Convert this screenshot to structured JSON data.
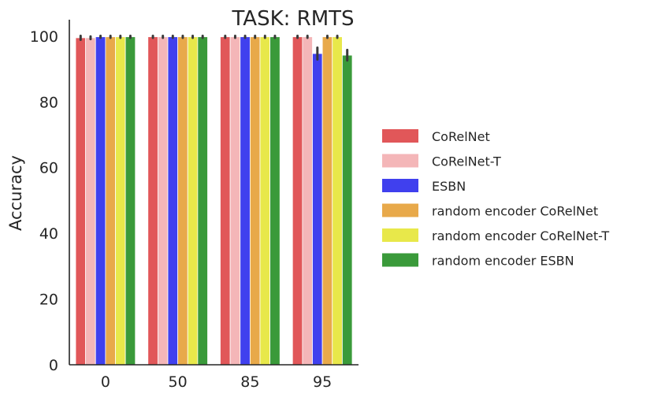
{
  "chart_data": {
    "type": "bar",
    "title": "TASK: RMTS",
    "xlabel": "",
    "ylabel": "Accuracy",
    "categories": [
      "0",
      "50",
      "85",
      "95"
    ],
    "ylim": [
      0,
      105
    ],
    "yticks": [
      0,
      20,
      40,
      60,
      80,
      100
    ],
    "grid": false,
    "legend_position": "right",
    "series": [
      {
        "name": "CoRelNet",
        "color": "#e15759",
        "values": [
          99.5,
          99.8,
          99.8,
          99.8
        ],
        "errors": [
          0.6,
          0.3,
          0.3,
          0.3
        ]
      },
      {
        "name": "CoRelNet-T",
        "color": "#f4b6b8",
        "values": [
          99.5,
          99.8,
          99.8,
          99.8
        ],
        "errors": [
          0.4,
          0.3,
          0.3,
          0.3
        ]
      },
      {
        "name": "ESBN",
        "color": "#4040ee",
        "values": [
          99.8,
          99.8,
          99.8,
          94.7
        ],
        "errors": [
          0.3,
          0.3,
          0.3,
          1.8
        ]
      },
      {
        "name": "random encoder CoRelNet",
        "color": "#e8a94a",
        "values": [
          99.8,
          99.8,
          99.8,
          99.8
        ],
        "errors": [
          0.3,
          0.3,
          0.3,
          0.3
        ]
      },
      {
        "name": "random encoder CoRelNet-T",
        "color": "#e8e84a",
        "values": [
          99.8,
          99.8,
          99.8,
          99.8
        ],
        "errors": [
          0.3,
          0.3,
          0.3,
          0.3
        ]
      },
      {
        "name": "random encoder ESBN",
        "color": "#3a9a3a",
        "values": [
          99.8,
          99.8,
          99.8,
          94.2
        ],
        "errors": [
          0.3,
          0.3,
          0.3,
          1.6
        ]
      }
    ]
  }
}
